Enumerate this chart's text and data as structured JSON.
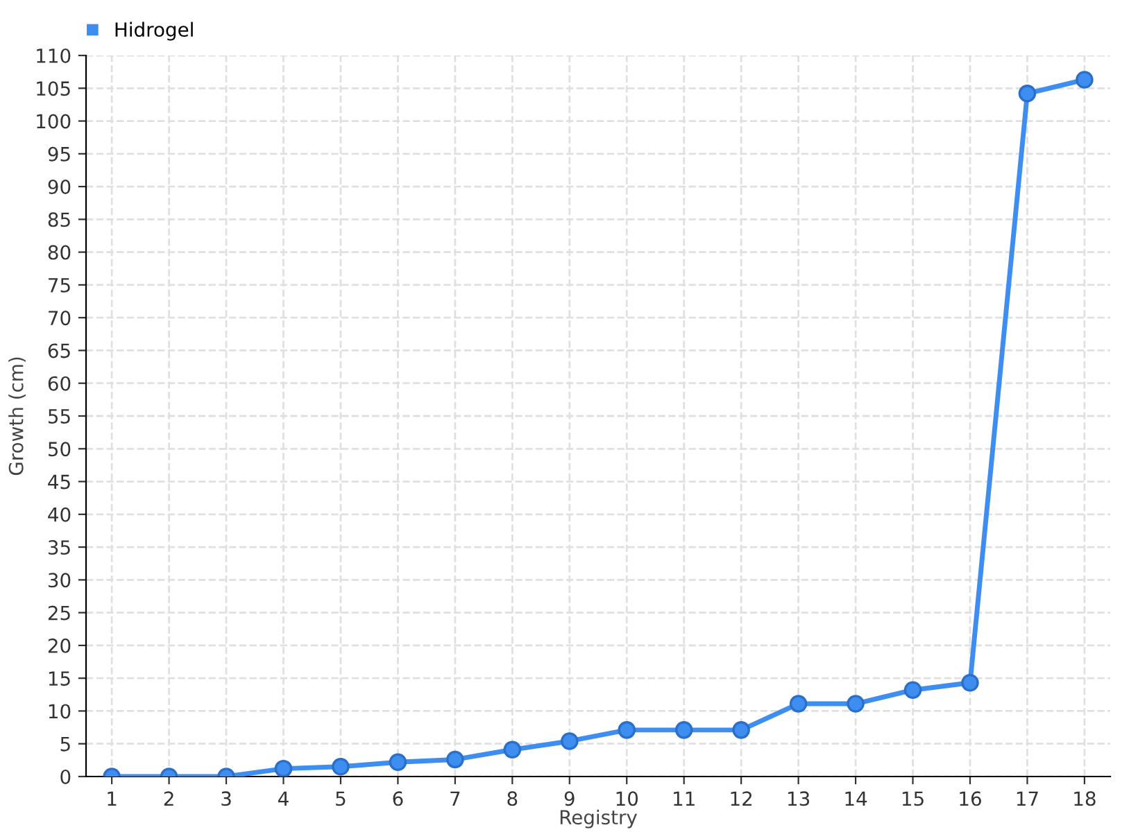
{
  "chart_data": {
    "type": "line",
    "xlabel": "Registry",
    "ylabel": "Growth (cm)",
    "categories": [
      "1",
      "2",
      "3",
      "4",
      "5",
      "6",
      "7",
      "8",
      "9",
      "10",
      "11",
      "12",
      "13",
      "14",
      "15",
      "16",
      "17",
      "18"
    ],
    "series": [
      {
        "name": "Hidrogel",
        "color": "#3d8ef0",
        "values": [
          0,
          0,
          0,
          1.2,
          1.5,
          2.2,
          2.6,
          4.1,
          5.4,
          7.1,
          7.1,
          7.1,
          11.1,
          11.1,
          13.2,
          14.3,
          104.2,
          106.3
        ]
      }
    ],
    "ylim": [
      0,
      110
    ],
    "yticks": [
      0,
      5,
      10,
      15,
      20,
      25,
      30,
      35,
      40,
      45,
      50,
      55,
      60,
      65,
      70,
      75,
      80,
      85,
      90,
      95,
      100,
      105,
      110
    ],
    "grid": true,
    "legend": "top left",
    "marker": "circle",
    "line_style": "solid"
  }
}
